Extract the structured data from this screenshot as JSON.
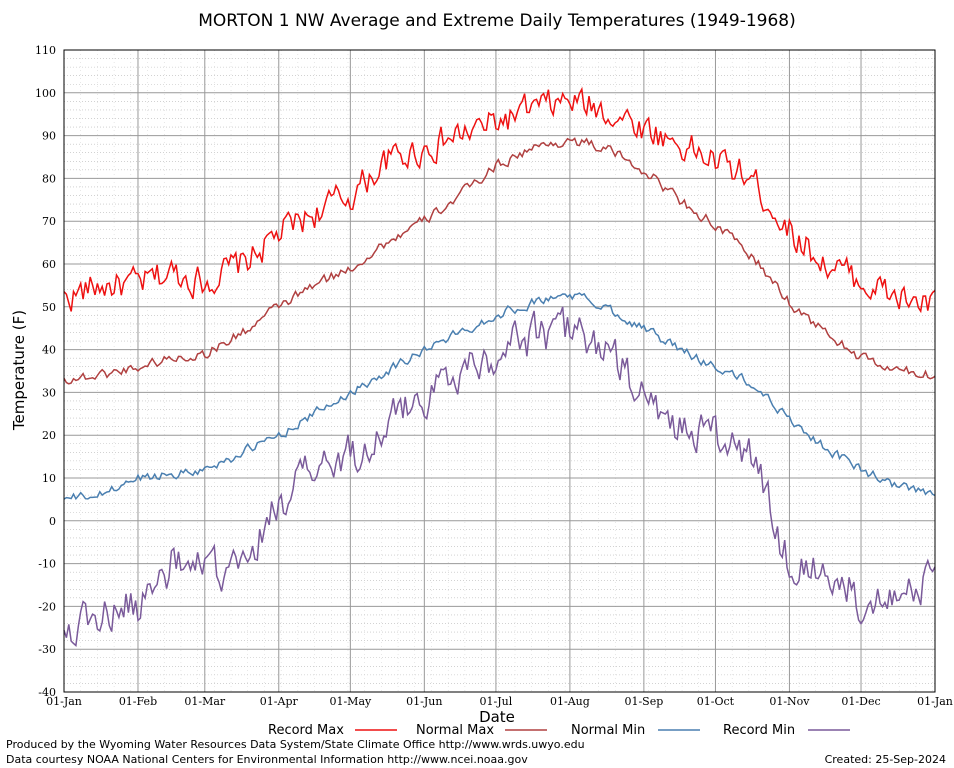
{
  "chart_data": {
    "type": "line",
    "title": "MORTON 1 NW Average and Extreme Daily Temperatures (1949-1968)",
    "xlabel": "Date",
    "ylabel": "Temperature (F)",
    "ylim": [
      -40,
      110
    ],
    "y_ticks": [
      -40,
      -30,
      -20,
      -10,
      0,
      10,
      20,
      30,
      40,
      50,
      60,
      70,
      80,
      90,
      100,
      110
    ],
    "x_tick_labels": [
      "01-Jan",
      "01-Feb",
      "01-Mar",
      "01-Apr",
      "01-May",
      "01-Jun",
      "01-Jul",
      "01-Aug",
      "01-Sep",
      "01-Oct",
      "01-Nov",
      "01-Dec",
      "01-Jan"
    ],
    "x_tick_days": [
      0,
      31,
      59,
      90,
      120,
      151,
      181,
      212,
      243,
      273,
      304,
      334,
      365
    ],
    "grid": true,
    "legend_position": "bottom",
    "series": [
      {
        "name": "Record Max",
        "color": "#ee1111",
        "days": [
          0,
          15,
          31,
          45,
          59,
          75,
          90,
          105,
          120,
          135,
          151,
          166,
          181,
          196,
          212,
          227,
          243,
          258,
          273,
          288,
          304,
          319,
          334,
          349,
          365
        ],
        "values": [
          52,
          55,
          55,
          58,
          56,
          60,
          67,
          72,
          76,
          84,
          87,
          90,
          93,
          96,
          98,
          96,
          92,
          88,
          84,
          80,
          68,
          60,
          56,
          52,
          50
        ],
        "noise": 6
      },
      {
        "name": "Normal Max",
        "color": "#b04040",
        "days": [
          0,
          15,
          31,
          45,
          59,
          75,
          90,
          105,
          120,
          135,
          151,
          166,
          181,
          196,
          212,
          227,
          243,
          258,
          273,
          288,
          304,
          319,
          334,
          349,
          365
        ],
        "values": [
          33,
          34,
          36,
          38,
          39,
          44,
          50,
          55,
          59,
          65,
          70,
          76,
          83,
          87,
          89,
          87,
          82,
          75,
          69,
          62,
          51,
          44,
          38,
          35,
          34
        ],
        "noise": 2
      },
      {
        "name": "Normal Min",
        "color": "#4a7fb0",
        "days": [
          0,
          15,
          31,
          45,
          59,
          75,
          90,
          105,
          120,
          135,
          151,
          166,
          181,
          196,
          212,
          227,
          243,
          258,
          273,
          288,
          304,
          319,
          334,
          349,
          365
        ],
        "values": [
          5,
          6,
          10,
          11,
          12,
          16,
          20,
          25,
          30,
          35,
          40,
          44,
          48,
          51,
          53,
          50,
          45,
          40,
          36,
          32,
          24,
          17,
          12,
          8,
          6
        ],
        "noise": 1.8
      },
      {
        "name": "Record Min",
        "color": "#7a5a9a",
        "days": [
          0,
          15,
          31,
          45,
          59,
          75,
          90,
          105,
          120,
          135,
          151,
          166,
          181,
          196,
          212,
          227,
          243,
          258,
          273,
          288,
          304,
          319,
          334,
          349,
          365
        ],
        "values": [
          -25,
          -22,
          -20,
          -10,
          -12,
          -12,
          5,
          12,
          15,
          22,
          30,
          35,
          40,
          43,
          45,
          40,
          28,
          22,
          20,
          15,
          -10,
          -12,
          -18,
          -15,
          -15
        ],
        "noise": 8
      }
    ]
  },
  "legend": {
    "record_max": "Record Max",
    "normal_max": "Normal Max",
    "normal_min": "Normal Min",
    "record_min": "Record Min"
  },
  "footer": {
    "produced_by": "Produced by the Wyoming Water Resources Data System/State Climate Office http://www.wrds.uwyo.edu",
    "courtesy": "Data courtesy NOAA National Centers for Environmental Information http://www.ncei.noaa.gov",
    "created": "Created:  25-Sep-2024"
  }
}
